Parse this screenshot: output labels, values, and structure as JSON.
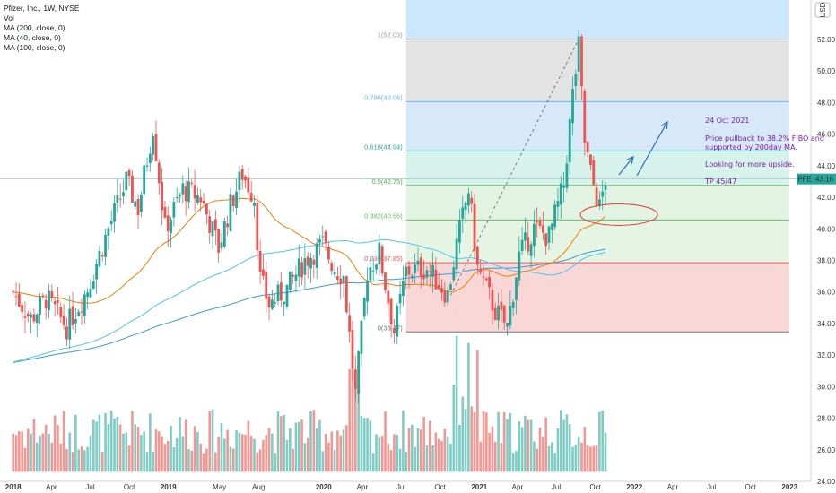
{
  "legend": {
    "symbol_line": "Pfizer, Inc., 1W, NYSE",
    "vol": "Vol",
    "ma200": "MA (200, close, 0)",
    "ma40": "MA (40, close, 0)",
    "ma100": "MA (100, close, 0)"
  },
  "currency": "USD",
  "ticker": "PFE",
  "last_price": "43.16",
  "colors": {
    "up": "#26a69a",
    "down": "#ef5350",
    "vol_up": "#80cbc4",
    "vol_down": "#f19894",
    "ma40": "#f57c00",
    "ma100": "#4fc3f7",
    "ma200": "#3d9bd1",
    "annotation": "#7b1fa2",
    "arrow": "#2b6cb0"
  },
  "annotations": {
    "date": "24 Oct 2021",
    "line1": "Price pullback to 38.2% FIBO and",
    "line2": "supported by 200day MA.",
    "line3": "Looking for more upside.",
    "tp": "TP 45/47"
  },
  "chart_data": {
    "type": "candlestick",
    "x_ticks": [
      "2018",
      "Apr",
      "Jul",
      "Oct",
      "2019",
      "May",
      "Aug",
      "2020",
      "Apr",
      "Jul",
      "Oct",
      "2021",
      "Apr",
      "Jul",
      "Oct",
      "2022",
      "Apr",
      "Jul",
      "Oct",
      "2023"
    ],
    "x_tick_dates": [
      "2018-01-01",
      "2018-04-01",
      "2018-07-01",
      "2018-10-01",
      "2019-01-01",
      "2019-05-01",
      "2019-08-01",
      "2020-01-01",
      "2020-04-01",
      "2020-07-01",
      "2020-10-01",
      "2021-01-01",
      "2021-04-01",
      "2021-07-01",
      "2021-10-01",
      "2022-01-01",
      "2022-04-01",
      "2022-07-01",
      "2022-10-01",
      "2023-01-01"
    ],
    "y_ticks": [
      "24.00",
      "26.00",
      "28.00",
      "30.00",
      "32.00",
      "34.00",
      "36.00",
      "38.00",
      "40.00",
      "42.00",
      "44.00",
      "46.00",
      "48.00",
      "50.00",
      "52.00"
    ],
    "ylim": [
      24,
      54.5
    ],
    "fibonacci": {
      "start": "2020-07-13",
      "end_line": "2022-12-31",
      "levels": [
        {
          "label": "1(52.03)",
          "price": 52.03
        },
        {
          "label": "0.786(48.06)",
          "price": 48.06
        },
        {
          "label": "0.618(44.94)",
          "price": 44.94
        },
        {
          "label": "0.5(42.75)",
          "price": 42.75
        },
        {
          "label": "0.382(40.56)",
          "price": 40.56
        },
        {
          "label": "0.236(37.85)",
          "price": 37.85
        },
        {
          "label": "0(33.47)",
          "price": 33.47
        }
      ]
    },
    "anchors": [
      [
        "2018-01-01",
        36.0
      ],
      [
        "2018-02-12",
        34.3
      ],
      [
        "2018-03-19",
        35.6
      ],
      [
        "2018-05-07",
        33.8
      ],
      [
        "2018-06-25",
        36.2
      ],
      [
        "2018-08-13",
        40.0
      ],
      [
        "2018-09-24",
        43.0
      ],
      [
        "2018-10-22",
        41.3
      ],
      [
        "2018-11-26",
        46.5
      ],
      [
        "2018-12-24",
        40.0
      ],
      [
        "2019-02-04",
        42.5
      ],
      [
        "2019-03-18",
        42.0
      ],
      [
        "2019-04-29",
        38.8
      ],
      [
        "2019-05-27",
        41.5
      ],
      [
        "2019-06-24",
        43.5
      ],
      [
        "2019-07-22",
        42.0
      ],
      [
        "2019-08-05",
        36.8
      ],
      [
        "2019-08-26",
        35.2
      ],
      [
        "2019-10-07",
        36.2
      ],
      [
        "2019-11-18",
        38.0
      ],
      [
        "2019-12-30",
        39.0
      ],
      [
        "2020-01-27",
        37.5
      ],
      [
        "2020-02-17",
        37.0
      ],
      [
        "2020-03-16",
        29.5
      ],
      [
        "2020-04-13",
        37.3
      ],
      [
        "2020-05-11",
        38.5
      ],
      [
        "2020-06-15",
        33.5
      ],
      [
        "2020-07-13",
        37.3
      ],
      [
        "2020-08-31",
        37.5
      ],
      [
        "2020-10-19",
        35.8
      ],
      [
        "2020-11-09",
        39.0
      ],
      [
        "2020-12-07",
        42.5
      ],
      [
        "2020-12-28",
        37.5
      ],
      [
        "2021-02-08",
        34.8
      ],
      [
        "2021-03-08",
        33.8
      ],
      [
        "2021-04-05",
        38.3
      ],
      [
        "2021-05-10",
        40.0
      ],
      [
        "2021-06-14",
        39.5
      ],
      [
        "2021-07-19",
        42.8
      ],
      [
        "2021-08-09",
        48.5
      ],
      [
        "2021-08-23",
        51.5
      ],
      [
        "2021-09-06",
        45.5
      ],
      [
        "2021-09-20",
        43.5
      ],
      [
        "2021-10-11",
        41.3
      ],
      [
        "2021-10-25",
        43.16
      ]
    ],
    "markers": {
      "last_close": 43.16,
      "target_1": 45,
      "target_2": 47
    }
  }
}
